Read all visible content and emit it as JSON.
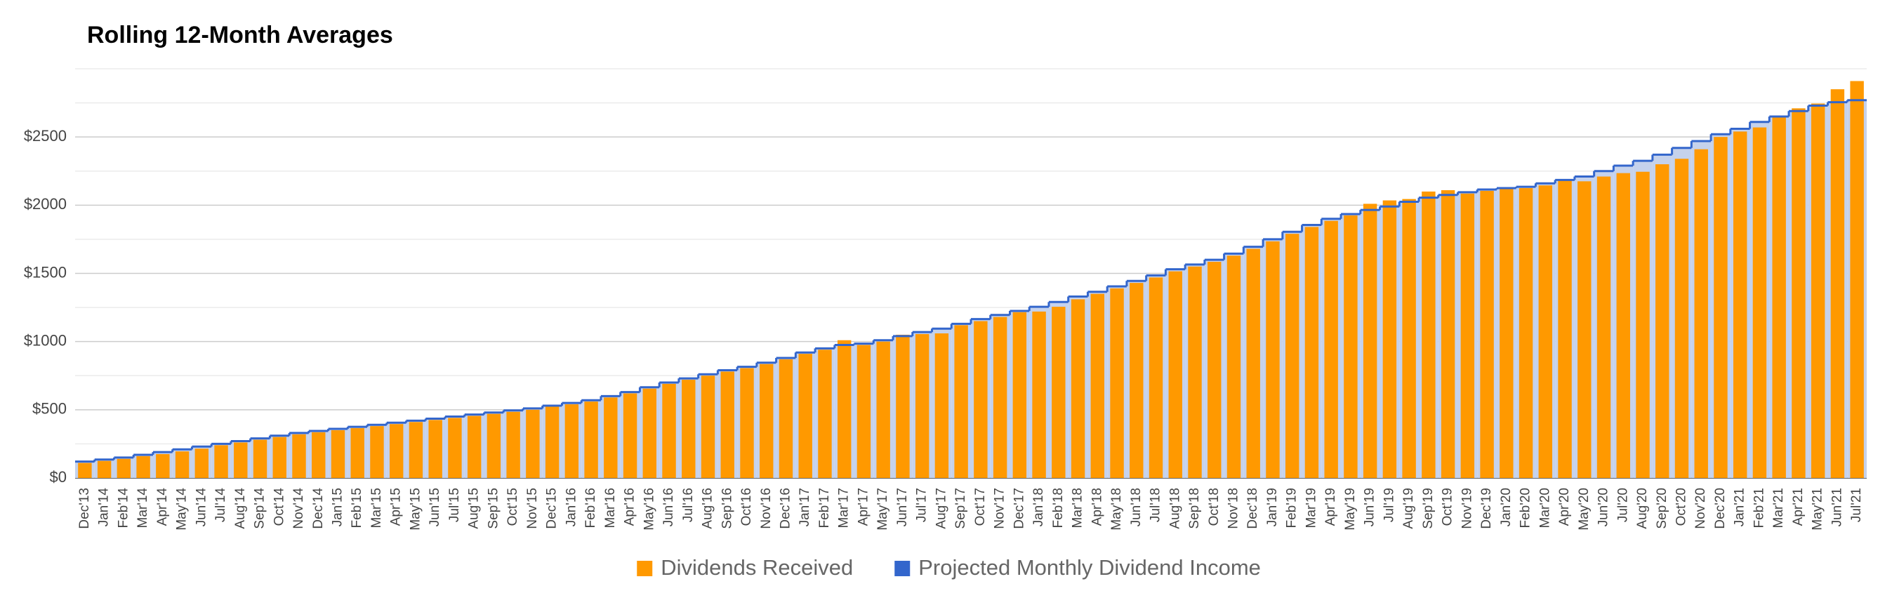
{
  "chart_data": {
    "type": "bar_step",
    "title": "Rolling 12-Month Averages",
    "categories": [
      "Dec'13",
      "Jan'14",
      "Feb'14",
      "Mar'14",
      "Apr'14",
      "May'14",
      "Jun'14",
      "Jul'14",
      "Aug'14",
      "Sep'14",
      "Oct'14",
      "Nov'14",
      "Dec'14",
      "Jan'15",
      "Feb'15",
      "Mar'15",
      "Apr'15",
      "May'15",
      "Jun'15",
      "Jul'15",
      "Aug'15",
      "Sep'15",
      "Oct'15",
      "Nov'15",
      "Dec'15",
      "Jan'16",
      "Feb'16",
      "Mar'16",
      "Apr'16",
      "May'16",
      "Jun'16",
      "Jul'16",
      "Aug'16",
      "Sep'16",
      "Oct'16",
      "Nov'16",
      "Dec'16",
      "Jan'17",
      "Feb'17",
      "Mar'17",
      "Apr'17",
      "May'17",
      "Jun'17",
      "Jul'17",
      "Aug'17",
      "Sep'17",
      "Oct'17",
      "Nov'17",
      "Dec'17",
      "Jan'18",
      "Feb'18",
      "Mar'18",
      "Apr'18",
      "May'18",
      "Jun'18",
      "Jul'18",
      "Aug'18",
      "Sep'18",
      "Oct'18",
      "Nov'18",
      "Dec'18",
      "Jan'19",
      "Feb'19",
      "Mar'19",
      "Apr'19",
      "May'19",
      "Jun'19",
      "Jul'19",
      "Aug'19",
      "Sep'19",
      "Oct'19",
      "Nov'19",
      "Dec'19",
      "Jan'20",
      "Feb'20",
      "Mar'20",
      "Apr'20",
      "May'20",
      "Jun'20",
      "Jul'20",
      "Aug'20",
      "Sep'20",
      "Oct'20",
      "Nov'20",
      "Dec'20",
      "Jan'21",
      "Feb'21",
      "Mar'21",
      "Apr'21",
      "May'21",
      "Jun'21",
      "Jul'21"
    ],
    "series": [
      {
        "name": "Dividends Received",
        "color": "#ff9900",
        "kind": "bar",
        "values": [
          110,
          125,
          140,
          160,
          175,
          195,
          215,
          240,
          260,
          280,
          300,
          320,
          335,
          350,
          365,
          380,
          395,
          410,
          425,
          440,
          455,
          470,
          485,
          500,
          525,
          540,
          560,
          590,
          620,
          655,
          690,
          720,
          750,
          780,
          805,
          835,
          870,
          910,
          940,
          1010,
          975,
          1000,
          1050,
          1055,
          1060,
          1120,
          1150,
          1180,
          1215,
          1220,
          1255,
          1310,
          1350,
          1390,
          1430,
          1470,
          1515,
          1550,
          1585,
          1630,
          1680,
          1735,
          1790,
          1840,
          1885,
          1925,
          2010,
          2035,
          2045,
          2100,
          2110,
          2085,
          2105,
          2120,
          2125,
          2145,
          2180,
          2175,
          2210,
          2235,
          2245,
          2300,
          2340,
          2410,
          2500,
          2540,
          2570,
          2650,
          2710,
          2745,
          2850,
          2910
        ]
      },
      {
        "name": "Projected Monthly Dividend Income",
        "color": "#3366cc",
        "kind": "step",
        "area_color": "#c5d2ec",
        "values": [
          120,
          135,
          150,
          170,
          190,
          210,
          230,
          250,
          270,
          290,
          310,
          330,
          345,
          360,
          375,
          390,
          405,
          420,
          435,
          450,
          465,
          480,
          495,
          510,
          530,
          550,
          570,
          600,
          630,
          665,
          700,
          730,
          760,
          790,
          815,
          845,
          880,
          920,
          950,
          975,
          985,
          1010,
          1040,
          1070,
          1095,
          1130,
          1165,
          1195,
          1225,
          1255,
          1290,
          1330,
          1365,
          1405,
          1445,
          1485,
          1530,
          1565,
          1600,
          1645,
          1695,
          1750,
          1805,
          1855,
          1900,
          1935,
          1965,
          1990,
          2025,
          2055,
          2075,
          2095,
          2115,
          2125,
          2135,
          2160,
          2185,
          2210,
          2250,
          2290,
          2325,
          2370,
          2420,
          2470,
          2520,
          2560,
          2610,
          2650,
          2690,
          2730,
          2755,
          2770
        ]
      }
    ],
    "ylim": [
      0,
      3000
    ],
    "yticks": [
      {
        "value": 0,
        "label": "$0"
      },
      {
        "value": 500,
        "label": "$500"
      },
      {
        "value": 1000,
        "label": "$1000"
      },
      {
        "value": 1500,
        "label": "$1500"
      },
      {
        "value": 2000,
        "label": "$2000"
      },
      {
        "value": 2500,
        "label": "$2500"
      }
    ],
    "yminor": [
      250,
      750,
      1250,
      1750,
      2250,
      2750,
      3000
    ],
    "grid": true,
    "legend": "bottom"
  }
}
